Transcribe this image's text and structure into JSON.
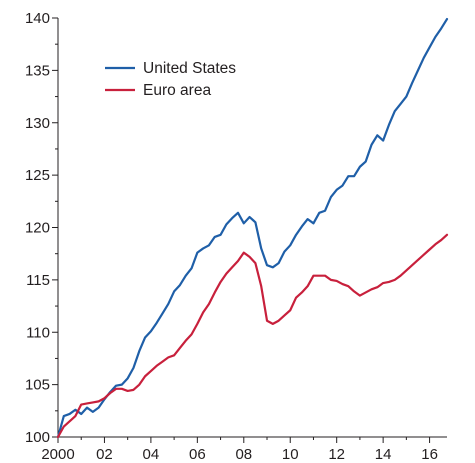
{
  "chart_data": {
    "type": "line",
    "title": "",
    "xlabel": "",
    "ylabel": "",
    "xlim": [
      2000,
      2016.75
    ],
    "ylim": [
      100,
      140
    ],
    "grid": false,
    "legend_position": "top-left",
    "x_tick_labels": [
      {
        "x": 2000,
        "label": "2000"
      },
      {
        "x": 2002,
        "label": "02"
      },
      {
        "x": 2004,
        "label": "04"
      },
      {
        "x": 2006,
        "label": "06"
      },
      {
        "x": 2008,
        "label": "08"
      },
      {
        "x": 2010,
        "label": "10"
      },
      {
        "x": 2012,
        "label": "12"
      },
      {
        "x": 2014,
        "label": "14"
      },
      {
        "x": 2016,
        "label": "16"
      }
    ],
    "y_ticks": [
      100,
      105,
      110,
      115,
      120,
      125,
      130,
      135,
      140
    ],
    "y_tick_labels": [
      "100",
      "105",
      "110",
      "115",
      "120",
      "125",
      "130",
      "135",
      "140"
    ],
    "x_minor_ticks": [
      2001,
      2003,
      2005,
      2007,
      2009,
      2011,
      2013,
      2015
    ],
    "y_minor_ticks": [
      102.5,
      107.5,
      112.5,
      117.5,
      122.5,
      127.5,
      132.5,
      137.5
    ],
    "series": [
      {
        "name": "United States",
        "color": "#1f5fa8",
        "points": [
          [
            2000.0,
            100.0
          ],
          [
            2000.25,
            102.0
          ],
          [
            2000.5,
            102.2
          ],
          [
            2000.75,
            102.6
          ],
          [
            2001.0,
            102.2
          ],
          [
            2001.25,
            102.8
          ],
          [
            2001.5,
            102.4
          ],
          [
            2001.75,
            102.8
          ],
          [
            2002.0,
            103.6
          ],
          [
            2002.25,
            104.3
          ],
          [
            2002.5,
            104.9
          ],
          [
            2002.75,
            105.0
          ],
          [
            2003.0,
            105.6
          ],
          [
            2003.25,
            106.6
          ],
          [
            2003.5,
            108.2
          ],
          [
            2003.75,
            109.5
          ],
          [
            2004.0,
            110.1
          ],
          [
            2004.25,
            110.9
          ],
          [
            2004.5,
            111.8
          ],
          [
            2004.75,
            112.7
          ],
          [
            2005.0,
            113.9
          ],
          [
            2005.25,
            114.5
          ],
          [
            2005.5,
            115.4
          ],
          [
            2005.75,
            116.1
          ],
          [
            2006.0,
            117.6
          ],
          [
            2006.25,
            118.0
          ],
          [
            2006.5,
            118.3
          ],
          [
            2006.75,
            119.1
          ],
          [
            2007.0,
            119.3
          ],
          [
            2007.25,
            120.3
          ],
          [
            2007.5,
            120.9
          ],
          [
            2007.75,
            121.4
          ],
          [
            2008.0,
            120.4
          ],
          [
            2008.25,
            121.0
          ],
          [
            2008.5,
            120.5
          ],
          [
            2008.75,
            118.0
          ],
          [
            2009.0,
            116.4
          ],
          [
            2009.25,
            116.2
          ],
          [
            2009.5,
            116.6
          ],
          [
            2009.75,
            117.7
          ],
          [
            2010.0,
            118.3
          ],
          [
            2010.25,
            119.3
          ],
          [
            2010.5,
            120.1
          ],
          [
            2010.75,
            120.8
          ],
          [
            2011.0,
            120.4
          ],
          [
            2011.25,
            121.4
          ],
          [
            2011.5,
            121.6
          ],
          [
            2011.75,
            122.9
          ],
          [
            2012.0,
            123.6
          ],
          [
            2012.25,
            124.0
          ],
          [
            2012.5,
            124.9
          ],
          [
            2012.75,
            124.9
          ],
          [
            2013.0,
            125.8
          ],
          [
            2013.25,
            126.3
          ],
          [
            2013.5,
            127.9
          ],
          [
            2013.75,
            128.8
          ],
          [
            2014.0,
            128.3
          ],
          [
            2014.25,
            129.8
          ],
          [
            2014.5,
            131.1
          ],
          [
            2014.75,
            131.8
          ],
          [
            2015.0,
            132.5
          ],
          [
            2015.25,
            133.8
          ],
          [
            2015.5,
            135.0
          ],
          [
            2015.75,
            136.2
          ],
          [
            2016.0,
            137.2
          ],
          [
            2016.25,
            138.2
          ],
          [
            2016.5,
            139.0
          ],
          [
            2016.75,
            139.9
          ]
        ]
      },
      {
        "name": "Euro area",
        "color": "#c8203c",
        "points": [
          [
            2000.0,
            100.0
          ],
          [
            2000.25,
            101.0
          ],
          [
            2000.5,
            101.5
          ],
          [
            2000.75,
            102.0
          ],
          [
            2001.0,
            103.1
          ],
          [
            2001.25,
            103.2
          ],
          [
            2001.5,
            103.3
          ],
          [
            2001.75,
            103.4
          ],
          [
            2002.0,
            103.7
          ],
          [
            2002.25,
            104.2
          ],
          [
            2002.5,
            104.6
          ],
          [
            2002.75,
            104.6
          ],
          [
            2003.0,
            104.4
          ],
          [
            2003.25,
            104.5
          ],
          [
            2003.5,
            105.0
          ],
          [
            2003.75,
            105.8
          ],
          [
            2004.0,
            106.3
          ],
          [
            2004.25,
            106.8
          ],
          [
            2004.5,
            107.2
          ],
          [
            2004.75,
            107.6
          ],
          [
            2005.0,
            107.8
          ],
          [
            2005.25,
            108.5
          ],
          [
            2005.5,
            109.2
          ],
          [
            2005.75,
            109.8
          ],
          [
            2006.0,
            110.8
          ],
          [
            2006.25,
            111.9
          ],
          [
            2006.5,
            112.7
          ],
          [
            2006.75,
            113.8
          ],
          [
            2007.0,
            114.8
          ],
          [
            2007.25,
            115.6
          ],
          [
            2007.5,
            116.2
          ],
          [
            2007.75,
            116.8
          ],
          [
            2008.0,
            117.6
          ],
          [
            2008.25,
            117.2
          ],
          [
            2008.5,
            116.6
          ],
          [
            2008.75,
            114.4
          ],
          [
            2009.0,
            111.1
          ],
          [
            2009.25,
            110.8
          ],
          [
            2009.5,
            111.1
          ],
          [
            2009.75,
            111.6
          ],
          [
            2010.0,
            112.1
          ],
          [
            2010.25,
            113.3
          ],
          [
            2010.5,
            113.8
          ],
          [
            2010.75,
            114.4
          ],
          [
            2011.0,
            115.4
          ],
          [
            2011.25,
            115.4
          ],
          [
            2011.5,
            115.4
          ],
          [
            2011.75,
            115.0
          ],
          [
            2012.0,
            114.9
          ],
          [
            2012.25,
            114.6
          ],
          [
            2012.5,
            114.4
          ],
          [
            2012.75,
            113.9
          ],
          [
            2013.0,
            113.5
          ],
          [
            2013.25,
            113.8
          ],
          [
            2013.5,
            114.1
          ],
          [
            2013.75,
            114.3
          ],
          [
            2014.0,
            114.7
          ],
          [
            2014.25,
            114.8
          ],
          [
            2014.5,
            115.0
          ],
          [
            2014.75,
            115.4
          ],
          [
            2015.0,
            115.9
          ],
          [
            2015.25,
            116.4
          ],
          [
            2015.5,
            116.9
          ],
          [
            2015.75,
            117.4
          ],
          [
            2016.0,
            117.9
          ],
          [
            2016.25,
            118.4
          ],
          [
            2016.5,
            118.8
          ],
          [
            2016.75,
            119.3
          ]
        ]
      }
    ]
  }
}
